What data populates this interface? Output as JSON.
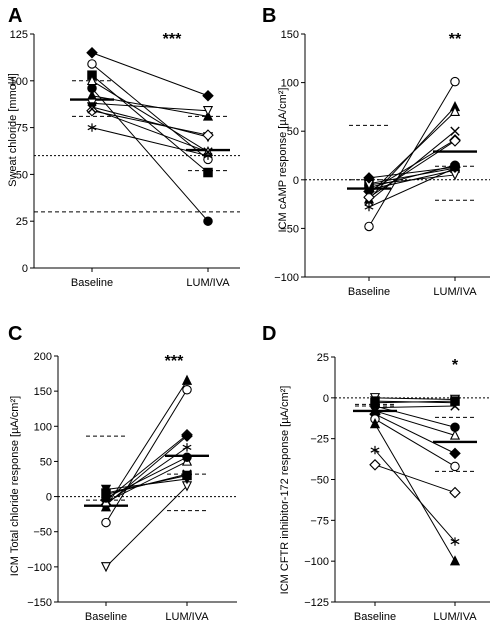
{
  "chart_data": [
    {
      "panel": "A",
      "type": "line",
      "categories": [
        "Baseline",
        "LUM/IVA"
      ],
      "ylabel": "Sweat chloride [mmol/l]",
      "ylim": [
        0,
        125
      ],
      "yticks": [
        0,
        25,
        50,
        75,
        100,
        125
      ],
      "significance": "***",
      "series": [
        {
          "marker": "filled-diamond",
          "values": [
            115,
            92
          ]
        },
        {
          "marker": "open-circle",
          "values": [
            109,
            58
          ]
        },
        {
          "marker": "filled-square",
          "values": [
            103,
            51
          ]
        },
        {
          "marker": "filled-circle",
          "values": [
            96,
            25
          ]
        },
        {
          "marker": "open-triangle",
          "values": [
            100,
            62
          ]
        },
        {
          "marker": "filled-triangle",
          "values": [
            92,
            81
          ]
        },
        {
          "marker": "open-inverted-triangle",
          "values": [
            88,
            84
          ]
        },
        {
          "marker": "filled-inverted-triangle",
          "values": [
            86,
            70
          ]
        },
        {
          "marker": "open-diamond",
          "values": [
            84,
            71
          ]
        },
        {
          "marker": "cross",
          "values": [
            85,
            62
          ]
        },
        {
          "marker": "star",
          "values": [
            75,
            60
          ]
        }
      ],
      "mean": [
        90,
        63
      ],
      "sd": [
        [
          100,
          81
        ],
        [
          81,
          52
        ]
      ],
      "reference_lines": [
        60,
        30
      ]
    },
    {
      "panel": "B",
      "type": "line",
      "categories": [
        "Baseline",
        "LUM/IVA"
      ],
      "ylabel": "ICM cAMP response [µA/cm²]",
      "ylim": [
        -100,
        150
      ],
      "yticks": [
        -100,
        -50,
        0,
        50,
        100,
        150
      ],
      "significance": "**",
      "series": [
        {
          "marker": "open-circle",
          "values": [
            -48,
            101
          ]
        },
        {
          "marker": "filled-triangle",
          "values": [
            -20,
            75
          ]
        },
        {
          "marker": "open-triangle",
          "values": [
            -15,
            70
          ]
        },
        {
          "marker": "cross",
          "values": [
            -22,
            50
          ]
        },
        {
          "marker": "filled-diamond",
          "values": [
            -12,
            41
          ]
        },
        {
          "marker": "open-diamond",
          "values": [
            -18,
            40
          ]
        },
        {
          "marker": "filled-circle",
          "values": [
            -8,
            15
          ]
        },
        {
          "marker": "filled-square",
          "values": [
            -4,
            12
          ]
        },
        {
          "marker": "filled-inverted-triangle",
          "values": [
            -10,
            10
          ]
        },
        {
          "marker": "open-inverted-triangle",
          "values": [
            -5,
            5
          ]
        },
        {
          "marker": "star",
          "values": [
            -28,
            12
          ]
        },
        {
          "marker": "filled-diamond",
          "values": [
            2,
            13
          ]
        }
      ],
      "mean": [
        -9,
        29
      ],
      "sd": [
        [
          0,
          56
        ],
        [
          -21,
          14
        ]
      ],
      "reference_lines": [
        0
      ]
    },
    {
      "panel": "C",
      "type": "line",
      "categories": [
        "Baseline",
        "LUM/IVA"
      ],
      "ylabel": "ICM Total chloride response [µA/cm²]",
      "ylim": [
        -150,
        200
      ],
      "yticks": [
        -150,
        -100,
        -50,
        0,
        50,
        100,
        150,
        200
      ],
      "significance": "***",
      "series": [
        {
          "marker": "open-inverted-triangle",
          "values": [
            -100,
            15
          ]
        },
        {
          "marker": "open-circle",
          "values": [
            -37,
            152
          ]
        },
        {
          "marker": "filled-triangle",
          "values": [
            -15,
            165
          ]
        },
        {
          "marker": "open-diamond",
          "values": [
            -5,
            88
          ]
        },
        {
          "marker": "filled-diamond",
          "values": [
            -12,
            86
          ]
        },
        {
          "marker": "star",
          "values": [
            -10,
            70
          ]
        },
        {
          "marker": "open-triangle",
          "values": [
            -8,
            50
          ]
        },
        {
          "marker": "filled-circle",
          "values": [
            -2,
            56
          ]
        },
        {
          "marker": "filled-square",
          "values": [
            5,
            30
          ]
        },
        {
          "marker": "filled-inverted-triangle",
          "values": [
            10,
            25
          ]
        },
        {
          "marker": "cross",
          "values": [
            3,
            32
          ]
        }
      ],
      "mean": [
        -13,
        58
      ],
      "sd": [
        [
          -5,
          86
        ],
        [
          -20,
          32
        ]
      ],
      "reference_lines": [
        0
      ]
    },
    {
      "panel": "D",
      "type": "line",
      "categories": [
        "Baseline",
        "LUM/IVA"
      ],
      "ylabel": "ICM CFTR inhibitor-172 response [µA/cm²]",
      "ylim": [
        -125,
        25
      ],
      "yticks": [
        -125,
        -100,
        -75,
        -50,
        -25,
        0,
        25
      ],
      "significance": "*",
      "series": [
        {
          "marker": "open-inverted-triangle",
          "values": [
            0,
            -1
          ]
        },
        {
          "marker": "filled-square",
          "values": [
            -3,
            -2
          ]
        },
        {
          "marker": "filled-circle",
          "values": [
            -5,
            -18
          ]
        },
        {
          "marker": "open-triangle",
          "values": [
            -8,
            -23
          ]
        },
        {
          "marker": "filled-diamond",
          "values": [
            -10,
            -34
          ]
        },
        {
          "marker": "open-circle",
          "values": [
            -13,
            -42
          ]
        },
        {
          "marker": "cross",
          "values": [
            -6,
            -5
          ]
        },
        {
          "marker": "open-diamond",
          "values": [
            -41,
            -58
          ]
        },
        {
          "marker": "star",
          "values": [
            -32,
            -88
          ]
        },
        {
          "marker": "filled-triangle",
          "values": [
            -16,
            -100
          ]
        },
        {
          "marker": "filled-inverted-triangle",
          "values": [
            -2,
            -3
          ]
        }
      ],
      "mean": [
        -8,
        -27
      ],
      "sd": [
        [
          -4,
          -5
        ],
        [
          -12,
          -45
        ]
      ],
      "reference_lines": [
        0
      ]
    }
  ]
}
